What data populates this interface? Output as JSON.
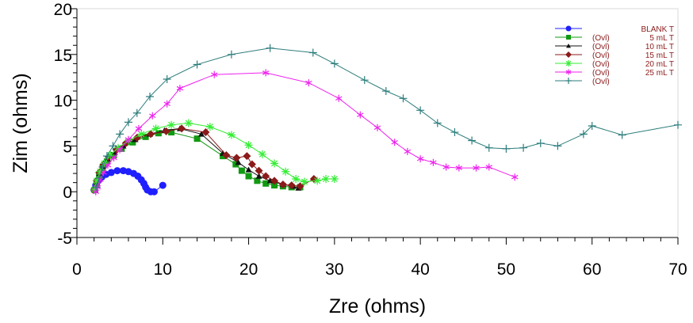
{
  "chart_data": {
    "type": "scatter",
    "xlabel": "Zre (ohms)",
    "ylabel": "Zim (ohms)",
    "xlim": [
      0,
      70
    ],
    "ylim": [
      -5,
      20
    ],
    "xticks": [
      "0",
      "10",
      "20",
      "30",
      "40",
      "50",
      "60",
      "70"
    ],
    "yticks": [
      "-5",
      "0",
      "5",
      "10",
      "15",
      "20"
    ],
    "grid": false,
    "legend_position": "top-right",
    "series": [
      {
        "name": "BLANK T",
        "prefix": "",
        "amount": "",
        "color": "#1f1fff",
        "marker": "circle",
        "points": [
          [
            2.0,
            0.2
          ],
          [
            2.2,
            0.7
          ],
          [
            2.5,
            1.2
          ],
          [
            2.9,
            1.6
          ],
          [
            3.4,
            1.9
          ],
          [
            4.0,
            2.1
          ],
          [
            4.7,
            2.3
          ],
          [
            5.4,
            2.3
          ],
          [
            6.0,
            2.2
          ],
          [
            6.6,
            2.0
          ],
          [
            7.1,
            1.7
          ],
          [
            7.5,
            1.3
          ],
          [
            7.8,
            0.9
          ],
          [
            8.0,
            0.5
          ],
          [
            8.2,
            0.2
          ],
          [
            8.6,
            0.0
          ],
          [
            9.0,
            0.0
          ],
          [
            10.0,
            0.7
          ]
        ]
      },
      {
        "name": "5 mL T",
        "prefix": "(Ovl)",
        "amount": "5 mL T",
        "color": "#119911",
        "marker": "square",
        "points": [
          [
            2.1,
            0.2
          ],
          [
            2.3,
            1.0
          ],
          [
            2.6,
            1.8
          ],
          [
            3.0,
            2.6
          ],
          [
            3.5,
            3.3
          ],
          [
            4.3,
            4.0
          ],
          [
            5.2,
            4.7
          ],
          [
            6.5,
            5.4
          ],
          [
            8.0,
            6.0
          ],
          [
            9.5,
            6.4
          ],
          [
            11.0,
            6.5
          ],
          [
            14.0,
            5.8
          ],
          [
            17.0,
            3.9
          ],
          [
            18.5,
            3.0
          ],
          [
            19.2,
            2.3
          ],
          [
            20.0,
            1.7
          ],
          [
            21.0,
            1.2
          ],
          [
            22.0,
            0.9
          ],
          [
            23.0,
            0.7
          ],
          [
            24.0,
            0.6
          ],
          [
            25.0,
            0.5
          ],
          [
            26.0,
            0.5
          ]
        ]
      },
      {
        "name": "10 mL T",
        "prefix": "(Ovl)",
        "amount": "10 mL T",
        "color": "#111111",
        "marker": "triangle",
        "points": [
          [
            2.1,
            0.2
          ],
          [
            2.3,
            1.1
          ],
          [
            2.6,
            2.0
          ],
          [
            3.0,
            2.8
          ],
          [
            3.6,
            3.6
          ],
          [
            4.4,
            4.3
          ],
          [
            5.4,
            5.0
          ],
          [
            6.8,
            5.7
          ],
          [
            8.5,
            6.3
          ],
          [
            10.2,
            6.7
          ],
          [
            12.0,
            6.9
          ],
          [
            14.5,
            6.3
          ],
          [
            17.0,
            4.2
          ],
          [
            18.8,
            3.2
          ],
          [
            20.0,
            2.4
          ],
          [
            21.2,
            1.7
          ],
          [
            22.5,
            1.2
          ],
          [
            24.0,
            0.8
          ],
          [
            25.2,
            0.6
          ],
          [
            25.8,
            0.4
          ]
        ]
      },
      {
        "name": "15 mL T",
        "prefix": "(Ovl)",
        "amount": "15 mL T",
        "color": "#8b1a1a",
        "marker": "diamond",
        "points": [
          [
            2.0,
            0.2
          ],
          [
            2.3,
            1.2
          ],
          [
            2.6,
            2.1
          ],
          [
            3.1,
            3.0
          ],
          [
            3.7,
            3.8
          ],
          [
            4.6,
            4.6
          ],
          [
            5.7,
            5.3
          ],
          [
            7.0,
            5.9
          ],
          [
            8.6,
            6.3
          ],
          [
            10.4,
            6.6
          ],
          [
            12.2,
            6.9
          ],
          [
            15.0,
            6.5
          ],
          [
            17.4,
            4.0
          ],
          [
            18.6,
            3.7
          ],
          [
            19.8,
            3.9
          ],
          [
            20.4,
            3.0
          ],
          [
            21.2,
            2.3
          ],
          [
            22.0,
            1.7
          ],
          [
            23.0,
            1.2
          ],
          [
            24.0,
            0.8
          ],
          [
            25.0,
            0.7
          ],
          [
            26.0,
            0.6
          ],
          [
            27.6,
            1.4
          ]
        ]
      },
      {
        "name": "20 mL T",
        "prefix": "(Ovl)",
        "amount": "20 mL T",
        "color": "#33ee33",
        "marker": "star",
        "points": [
          [
            2.0,
            0.2
          ],
          [
            2.3,
            1.2
          ],
          [
            2.7,
            2.2
          ],
          [
            3.2,
            3.1
          ],
          [
            3.9,
            4.0
          ],
          [
            4.8,
            4.8
          ],
          [
            6.0,
            5.6
          ],
          [
            7.5,
            6.3
          ],
          [
            9.2,
            6.9
          ],
          [
            11.0,
            7.3
          ],
          [
            13.0,
            7.5
          ],
          [
            15.5,
            7.1
          ],
          [
            18.0,
            6.2
          ],
          [
            20.0,
            5.1
          ],
          [
            21.6,
            4.1
          ],
          [
            23.0,
            3.1
          ],
          [
            24.3,
            2.2
          ],
          [
            25.5,
            1.4
          ],
          [
            26.5,
            1.1
          ],
          [
            28.0,
            1.2
          ],
          [
            29.0,
            1.4
          ],
          [
            30.0,
            1.4
          ]
        ]
      },
      {
        "name": "25 mL T",
        "prefix": "(Ovl)",
        "amount": "25 mL T",
        "color": "#ee22ee",
        "marker": "asterisk",
        "points": [
          [
            2.2,
            0.0
          ],
          [
            2.4,
            0.5
          ],
          [
            2.7,
            1.3
          ],
          [
            3.1,
            2.1
          ],
          [
            3.6,
            2.9
          ],
          [
            4.3,
            3.7
          ],
          [
            5.0,
            4.6
          ],
          [
            6.0,
            5.7
          ],
          [
            7.2,
            6.9
          ],
          [
            8.8,
            8.3
          ],
          [
            10.5,
            9.6
          ],
          [
            12.0,
            11.3
          ],
          [
            16.0,
            12.8
          ],
          [
            22.0,
            13.0
          ],
          [
            27.0,
            11.9
          ],
          [
            30.5,
            10.2
          ],
          [
            33.0,
            8.4
          ],
          [
            35.0,
            7.0
          ],
          [
            37.0,
            5.4
          ],
          [
            38.5,
            4.4
          ],
          [
            40.0,
            3.6
          ],
          [
            41.5,
            3.2
          ],
          [
            43.0,
            2.7
          ],
          [
            44.5,
            2.6
          ],
          [
            46.5,
            2.6
          ],
          [
            48.0,
            2.7
          ],
          [
            51.0,
            1.6
          ]
        ]
      },
      {
        "name": "",
        "prefix": "(Ovl)",
        "amount": "",
        "color": "#2e7d7d",
        "marker": "plus",
        "points": [
          [
            2.3,
            0.5
          ],
          [
            2.6,
            1.5
          ],
          [
            3.0,
            2.7
          ],
          [
            3.5,
            3.9
          ],
          [
            4.2,
            5.0
          ],
          [
            5.0,
            6.3
          ],
          [
            6.0,
            7.6
          ],
          [
            7.0,
            8.6
          ],
          [
            8.5,
            10.4
          ],
          [
            10.5,
            12.3
          ],
          [
            14.0,
            13.9
          ],
          [
            18.0,
            15.0
          ],
          [
            22.5,
            15.7
          ],
          [
            27.5,
            15.2
          ],
          [
            30.0,
            14.0
          ],
          [
            33.5,
            12.2
          ],
          [
            36.0,
            11.0
          ],
          [
            38.0,
            10.2
          ],
          [
            40.0,
            8.9
          ],
          [
            42.0,
            7.5
          ],
          [
            44.0,
            6.5
          ],
          [
            46.0,
            5.6
          ],
          [
            48.0,
            4.8
          ],
          [
            50.0,
            4.7
          ],
          [
            52.0,
            4.8
          ],
          [
            54.0,
            5.3
          ],
          [
            56.0,
            5.0
          ],
          [
            59.0,
            6.3
          ],
          [
            60.0,
            7.2
          ],
          [
            63.5,
            6.2
          ],
          [
            70.0,
            7.3
          ]
        ]
      }
    ]
  }
}
